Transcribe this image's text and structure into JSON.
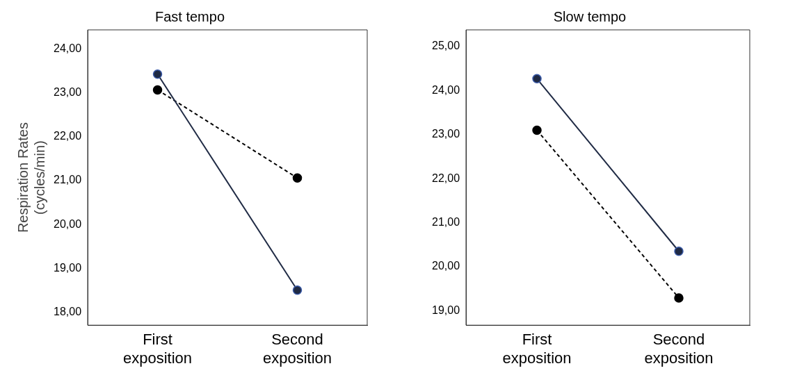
{
  "chart_data": [
    {
      "type": "line",
      "title": "Fast tempo",
      "ylabel": "Respiration Rates (cycles/min)",
      "categories": [
        "First exposition",
        "Second exposition"
      ],
      "ylim": [
        17.7,
        24.44
      ],
      "yticks": [
        {
          "value": 18,
          "label": "18,00"
        },
        {
          "value": 19,
          "label": "19,00"
        },
        {
          "value": 20,
          "label": "20,00"
        },
        {
          "value": 21,
          "label": "21,00"
        },
        {
          "value": 22,
          "label": "22,00"
        },
        {
          "value": 23,
          "label": "23,00"
        },
        {
          "value": 24,
          "label": "24,00"
        }
      ],
      "grid": false,
      "legend": false,
      "marker": "circle",
      "series": [
        {
          "color": "#1f2a44",
          "values": [
            23.43,
            18.5
          ],
          "line_style": "solid"
        },
        {
          "color": "#000000",
          "values": [
            23.07,
            21.06
          ],
          "line_style": "dashed"
        }
      ]
    },
    {
      "type": "line",
      "title": "Slow tempo",
      "categories": [
        "First exposition",
        "Second exposition"
      ],
      "ylim": [
        18.67,
        25.38
      ],
      "yticks": [
        {
          "value": 19,
          "label": "19,00"
        },
        {
          "value": 20,
          "label": "20,00"
        },
        {
          "value": 21,
          "label": "21,00"
        },
        {
          "value": 22,
          "label": "22,00"
        },
        {
          "value": 23,
          "label": "23,00"
        },
        {
          "value": 24,
          "label": "24,00"
        },
        {
          "value": 25,
          "label": "25,00"
        }
      ],
      "grid": false,
      "legend": false,
      "marker": "circle",
      "series": [
        {
          "color": "#1f2a44",
          "values": [
            24.27,
            20.35
          ],
          "line_style": "solid"
        },
        {
          "color": "#000000",
          "values": [
            23.1,
            19.29
          ],
          "line_style": "dashed"
        }
      ]
    }
  ]
}
